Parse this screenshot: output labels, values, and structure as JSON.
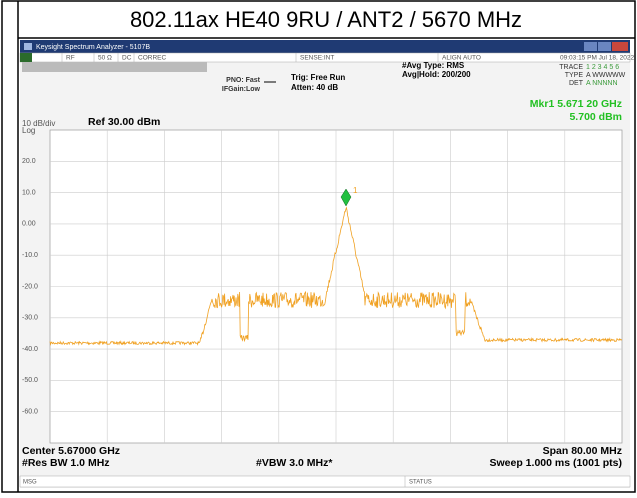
{
  "title": "802.11ax HE40 9RU / ANT2 / 5670 MHz",
  "window": {
    "title": "Keysight Spectrum Analyzer - 5107B"
  },
  "status_row": [
    "RL",
    "RF",
    "50 Ω",
    "DC",
    "CORREC",
    "SENSE:INT",
    "ALIGN AUTO",
    "09:03:15 PM Jul 18, 2022"
  ],
  "info": {
    "pno": "PNO: Fast",
    "ifgain": "IFGain:Low",
    "trig": "Trig: Free Run",
    "atten": "Atten: 40 dB",
    "avg_type": "#Avg Type: RMS",
    "avg_hold": "Avg|Hold: 200/200",
    "trace": "TRACE",
    "trace_values": "1 2 3 4 5 6",
    "type": "TYPE",
    "type_values": "A WWWWW",
    "det": "DET",
    "det_values": "A NNNNN"
  },
  "marker": {
    "frequency": "Mkr1 5.671 20 GHz",
    "level": "5.700 dBm",
    "number": "1"
  },
  "plot": {
    "scale": "10 dB/div",
    "scale_type": "Log",
    "ref_level": "Ref 30.00 dBm",
    "y_labels": [
      "20.0",
      "10.0",
      "0.00",
      "-10.0",
      "-20.0",
      "-30.0",
      "-40.0",
      "-50.0",
      "-60.0"
    ]
  },
  "footer": {
    "center": "Center 5.67000 GHz",
    "span": "Span 80.00 MHz",
    "res_bw": "#Res BW 1.0 MHz",
    "vbw": "#VBW 3.0 MHz*",
    "sweep": "Sweep  1.000 ms (1001 pts)",
    "msg": "MSG",
    "status": "STATUS"
  }
}
